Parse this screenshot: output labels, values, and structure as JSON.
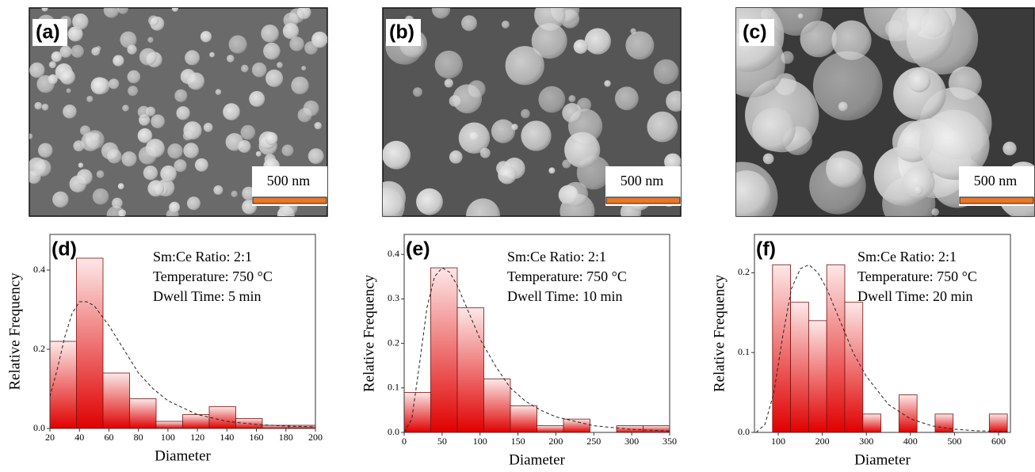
{
  "images": [
    {
      "label": "(a)",
      "scale_bar": "500 nm"
    },
    {
      "label": "(b)",
      "scale_bar": "500 nm"
    },
    {
      "label": "(c)",
      "scale_bar": "500 nm"
    }
  ],
  "chart_data": [
    {
      "type": "histogram",
      "panel_label": "(d)",
      "x_label": "Diameter",
      "y_label": "Relative Frequency",
      "annotations": [
        "Sm:Ce Ratio: 2:1",
        "Temperature: 750 °C",
        "Dwell Time: 5 min"
      ],
      "bins": [
        20,
        38,
        56,
        74,
        92,
        110,
        128,
        146,
        164,
        182,
        200
      ],
      "values": [
        0.22,
        0.43,
        0.14,
        0.075,
        0.018,
        0.035,
        0.055,
        0.025,
        0.008,
        0.008
      ],
      "color": "#e00000",
      "fit": {
        "x": [
          20,
          25,
          30,
          35,
          40,
          45,
          50,
          60,
          70,
          80,
          90,
          100,
          120,
          140,
          160,
          180,
          200
        ],
        "values": [
          0.08,
          0.15,
          0.23,
          0.29,
          0.32,
          0.32,
          0.31,
          0.26,
          0.2,
          0.14,
          0.1,
          0.07,
          0.035,
          0.018,
          0.01,
          0.006,
          0.004
        ]
      },
      "xlim": [
        20,
        200
      ],
      "xticks": [
        20,
        40,
        60,
        80,
        100,
        120,
        140,
        160,
        180,
        200
      ],
      "ylim": [
        0,
        0.49
      ],
      "yticks": [
        {
          "value": 0,
          "label": "0.0"
        },
        0.2,
        0.4
      ]
    },
    {
      "type": "histogram",
      "panel_label": "(e)",
      "x_label": "Diameter",
      "y_label": "Relative Frequency",
      "annotations": [
        "Sm:Ce Ratio: 2:1",
        "Temperature: 750 °C",
        "Dwell Time: 10 min"
      ],
      "bins": [
        0,
        35,
        70,
        105,
        140,
        175,
        210,
        245,
        280,
        315,
        350
      ],
      "values": [
        0.09,
        0.37,
        0.28,
        0.12,
        0.06,
        0.015,
        0.03,
        0,
        0.015,
        0.015
      ],
      "color": "#e00000",
      "fit": {
        "x": [
          0,
          10,
          20,
          30,
          40,
          50,
          60,
          70,
          80,
          100,
          120,
          140,
          160,
          180,
          200,
          250,
          300,
          350
        ],
        "values": [
          0,
          0.03,
          0.15,
          0.28,
          0.35,
          0.37,
          0.36,
          0.33,
          0.29,
          0.21,
          0.15,
          0.1,
          0.07,
          0.05,
          0.035,
          0.015,
          0.007,
          0.003
        ]
      },
      "xlim": [
        0,
        350
      ],
      "xticks": [
        0,
        50,
        100,
        150,
        200,
        250,
        300,
        350
      ],
      "ylim": [
        0,
        0.445
      ],
      "yticks": [
        {
          "value": 0,
          "label": "0.0"
        },
        0.1,
        0.2,
        0.3,
        0.4
      ]
    },
    {
      "type": "histogram",
      "panel_label": "(f)",
      "x_label": "Diameter",
      "y_label": "Relative Frequency",
      "annotations": [
        "Sm:Ce Ratio: 2:1",
        "Temperature: 750 °C",
        "Dwell Time: 20 min"
      ],
      "bins": [
        87,
        128,
        169,
        210,
        251,
        292,
        333,
        374,
        415,
        456,
        497,
        538,
        579,
        620
      ],
      "values": [
        0.21,
        0.163,
        0.14,
        0.21,
        0.163,
        0.023,
        0,
        0.047,
        0,
        0.023,
        0,
        0,
        0.023
      ],
      "color": "#e00000",
      "fit": {
        "x": [
          50,
          70,
          90,
          110,
          130,
          150,
          170,
          190,
          210,
          240,
          270,
          300,
          350,
          400,
          450,
          500,
          550,
          620
        ],
        "values": [
          0,
          0.01,
          0.05,
          0.12,
          0.18,
          0.205,
          0.21,
          0.2,
          0.18,
          0.14,
          0.1,
          0.07,
          0.035,
          0.017,
          0.008,
          0.004,
          0.002,
          0.001
        ]
      },
      "xlim": [
        46,
        627
      ],
      "xticks": [
        100,
        200,
        300,
        400,
        500,
        600
      ],
      "ylim": [
        0,
        0.248
      ],
      "yticks": [
        {
          "value": 0,
          "label": "0.0"
        },
        0.1,
        0.2
      ]
    }
  ]
}
